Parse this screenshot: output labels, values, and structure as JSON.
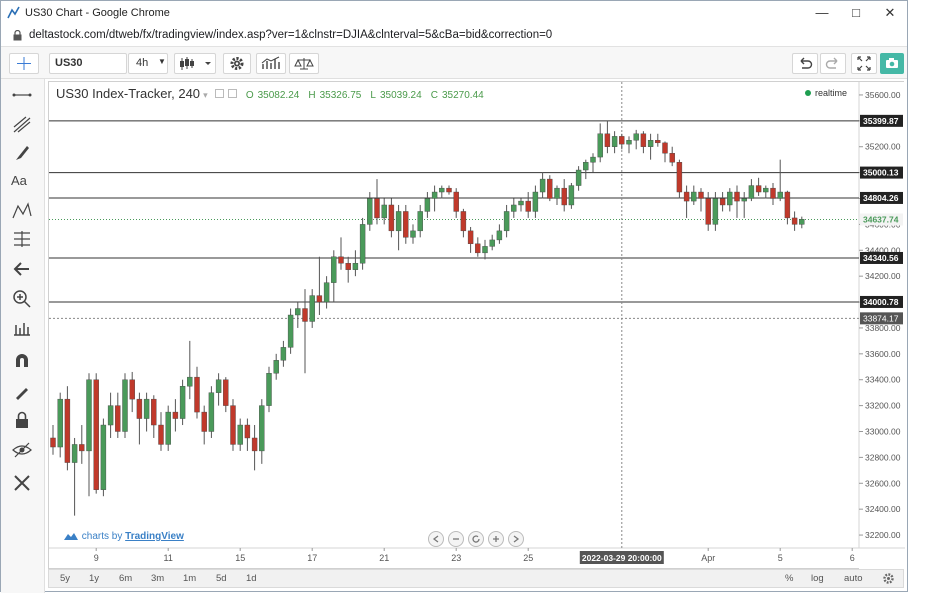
{
  "window": {
    "title": "US30 Chart - Google Chrome",
    "url": "deltastock.com/dtweb/fx/tradingview/index.asp?ver=1&clnstr=DJIA&clnterval=5&cBa=bid&correction=0"
  },
  "toolbar": {
    "symbol": "US30",
    "interval": "4h"
  },
  "legend": {
    "title": "US30 Index-Tracker, 240",
    "open": "35082.24",
    "high": "35326.75",
    "low": "35039.24",
    "close": "35270.44",
    "o_lbl": "O",
    "h_lbl": "H",
    "l_lbl": "L",
    "c_lbl": "C",
    "realtime": "realtime"
  },
  "brand": {
    "prefix": "charts by",
    "name": "TradingView"
  },
  "crosshair_label": "2022-03-29 20:00:00",
  "ranges": [
    "5y",
    "1y",
    "6m",
    "3m",
    "1m",
    "5d",
    "1d"
  ],
  "bottom_right": [
    "%",
    "log",
    "auto"
  ],
  "colors": {
    "up": "#4a9a5a",
    "down": "#c0392b",
    "accent": "#45b8a6",
    "line": "#333333"
  },
  "chart_data": {
    "type": "candlestick",
    "ylim": [
      32100,
      35700
    ],
    "y_ticks": [
      32200,
      32400,
      32600,
      32800,
      33000,
      33200,
      33400,
      33600,
      33800,
      34000,
      34200,
      34400,
      34600,
      34800,
      35000,
      35200,
      35400,
      35600
    ],
    "y_tick_labels": [
      "32200.00",
      "32400.00",
      "32600.00",
      "32800.00",
      "33000.00",
      "33200.00",
      "33400.00",
      "33600.00",
      "33800.00",
      "34000.00",
      "34200.00",
      "34400.00",
      "34600.00",
      "34800.00",
      "35000.00",
      "35200.00",
      "35400.00",
      "35600.00"
    ],
    "x_labels": [
      {
        "label": "9",
        "index": 6
      },
      {
        "label": "11",
        "index": 16
      },
      {
        "label": "15",
        "index": 26
      },
      {
        "label": "17",
        "index": 36
      },
      {
        "label": "21",
        "index": 46
      },
      {
        "label": "23",
        "index": 56
      },
      {
        "label": "25",
        "index": 66
      },
      {
        "label": "Apr",
        "index": 91
      },
      {
        "label": "5",
        "index": 101
      },
      {
        "label": "6",
        "index": 111
      }
    ],
    "levels": [
      {
        "value": 35399.87,
        "label": "35399.87"
      },
      {
        "value": 35000.13,
        "label": "35000.13"
      },
      {
        "value": 34804.26,
        "label": "34804.26"
      },
      {
        "value": 34340.56,
        "label": "34340.56"
      },
      {
        "value": 34000.78,
        "label": "34000.78"
      }
    ],
    "current": {
      "value": 34637.74,
      "label": "34637.74"
    },
    "crosshair": {
      "value": 33874.17,
      "label": "33874.17",
      "index": 79
    },
    "candles": [
      [
        32950,
        33050,
        32820,
        32880
      ],
      [
        32880,
        33300,
        32800,
        33250
      ],
      [
        33250,
        33350,
        32700,
        32760
      ],
      [
        32760,
        32950,
        32350,
        32900
      ],
      [
        32900,
        33050,
        32750,
        32850
      ],
      [
        32850,
        33450,
        32500,
        33400
      ],
      [
        33400,
        33450,
        32520,
        32550
      ],
      [
        32550,
        33100,
        32500,
        33050
      ],
      [
        33050,
        33300,
        32950,
        33200
      ],
      [
        33200,
        33300,
        32950,
        33000
      ],
      [
        33000,
        33450,
        32950,
        33400
      ],
      [
        33400,
        33460,
        33150,
        33250
      ],
      [
        33250,
        33300,
        32900,
        33100
      ],
      [
        33100,
        33300,
        33000,
        33250
      ],
      [
        33250,
        33280,
        32950,
        33050
      ],
      [
        33050,
        33150,
        32850,
        32900
      ],
      [
        32900,
        33200,
        32850,
        33150
      ],
      [
        33150,
        33250,
        33000,
        33100
      ],
      [
        33100,
        33400,
        33050,
        33350
      ],
      [
        33350,
        33700,
        33250,
        33420
      ],
      [
        33420,
        33500,
        33100,
        33150
      ],
      [
        33150,
        33200,
        32900,
        33000
      ],
      [
        33000,
        33350,
        32950,
        33300
      ],
      [
        33300,
        33450,
        33200,
        33400
      ],
      [
        33400,
        33420,
        33150,
        33200
      ],
      [
        33200,
        33250,
        32850,
        32900
      ],
      [
        32900,
        33100,
        32850,
        33050
      ],
      [
        33050,
        33100,
        32850,
        32950
      ],
      [
        32950,
        33050,
        32700,
        32850
      ],
      [
        32850,
        33250,
        32750,
        33200
      ],
      [
        33200,
        33500,
        33150,
        33450
      ],
      [
        33450,
        33600,
        33400,
        33550
      ],
      [
        33550,
        33700,
        33500,
        33650
      ],
      [
        33650,
        33950,
        33600,
        33900
      ],
      [
        33900,
        34000,
        33800,
        33950
      ],
      [
        33950,
        34100,
        33450,
        33850
      ],
      [
        33850,
        34100,
        33800,
        34050
      ],
      [
        34050,
        34350,
        33900,
        34000
      ],
      [
        34000,
        34200,
        33950,
        34150
      ],
      [
        34150,
        34400,
        34000,
        34350
      ],
      [
        34350,
        34500,
        34250,
        34300
      ],
      [
        34300,
        34350,
        34150,
        34250
      ],
      [
        34250,
        34400,
        34200,
        34300
      ],
      [
        34300,
        34650,
        34250,
        34600
      ],
      [
        34600,
        34850,
        34550,
        34800
      ],
      [
        34800,
        34950,
        34600,
        34650
      ],
      [
        34650,
        34800,
        34600,
        34750
      ],
      [
        34750,
        34800,
        34500,
        34550
      ],
      [
        34550,
        34750,
        34400,
        34700
      ],
      [
        34700,
        34750,
        34450,
        34500
      ],
      [
        34500,
        34600,
        34450,
        34550
      ],
      [
        34550,
        34750,
        34500,
        34700
      ],
      [
        34700,
        34850,
        34650,
        34800
      ],
      [
        34800,
        34900,
        34700,
        34850
      ],
      [
        34850,
        34900,
        34800,
        34880
      ],
      [
        34880,
        34900,
        34830,
        34850
      ],
      [
        34850,
        34880,
        34650,
        34700
      ],
      [
        34700,
        34720,
        34500,
        34550
      ],
      [
        34550,
        34580,
        34380,
        34450
      ],
      [
        34450,
        34500,
        34350,
        34380
      ],
      [
        34380,
        34480,
        34330,
        34430
      ],
      [
        34430,
        34520,
        34400,
        34480
      ],
      [
        34480,
        34600,
        34450,
        34550
      ],
      [
        34550,
        34750,
        34500,
        34700
      ],
      [
        34700,
        34800,
        34650,
        34750
      ],
      [
        34750,
        34800,
        34700,
        34780
      ],
      [
        34780,
        34850,
        34650,
        34700
      ],
      [
        34700,
        34900,
        34650,
        34850
      ],
      [
        34850,
        35000,
        34800,
        34950
      ],
      [
        34950,
        34980,
        34780,
        34800
      ],
      [
        34800,
        34900,
        34750,
        34880
      ],
      [
        34880,
        34950,
        34700,
        34750
      ],
      [
        34750,
        34920,
        34720,
        34900
      ],
      [
        34900,
        35050,
        34860,
        35020
      ],
      [
        35020,
        35100,
        34950,
        35080
      ],
      [
        35080,
        35150,
        35000,
        35120
      ],
      [
        35120,
        35380,
        35080,
        35300
      ],
      [
        35300,
        35400,
        35150,
        35200
      ],
      [
        35200,
        35320,
        35150,
        35280
      ],
      [
        35280,
        35300,
        35180,
        35220
      ],
      [
        35220,
        35280,
        35150,
        35250
      ],
      [
        35250,
        35330,
        35180,
        35300
      ],
      [
        35300,
        35320,
        35150,
        35200
      ],
      [
        35200,
        35300,
        35100,
        35250
      ],
      [
        35250,
        35300,
        35200,
        35230
      ],
      [
        35230,
        35240,
        35080,
        35150
      ],
      [
        35150,
        35200,
        35050,
        35080
      ],
      [
        35080,
        35100,
        34800,
        34850
      ],
      [
        34850,
        34900,
        34650,
        34780
      ],
      [
        34780,
        34900,
        34750,
        34850
      ],
      [
        34850,
        34880,
        34700,
        34800
      ],
      [
        34800,
        34850,
        34550,
        34600
      ],
      [
        34600,
        34850,
        34550,
        34800
      ],
      [
        34800,
        34850,
        34700,
        34750
      ],
      [
        34750,
        34880,
        34700,
        34850
      ],
      [
        34850,
        34900,
        34650,
        34780
      ],
      [
        34780,
        34850,
        34650,
        34800
      ],
      [
        34800,
        34950,
        34780,
        34900
      ],
      [
        34900,
        34960,
        34820,
        34850
      ],
      [
        34850,
        34900,
        34800,
        34880
      ],
      [
        34880,
        34920,
        34750,
        34800
      ],
      [
        34800,
        35100,
        34780,
        34850
      ],
      [
        34850,
        34860,
        34600,
        34650
      ],
      [
        34650,
        34700,
        34550,
        34600
      ],
      [
        34600,
        34660,
        34570,
        34640
      ]
    ]
  }
}
